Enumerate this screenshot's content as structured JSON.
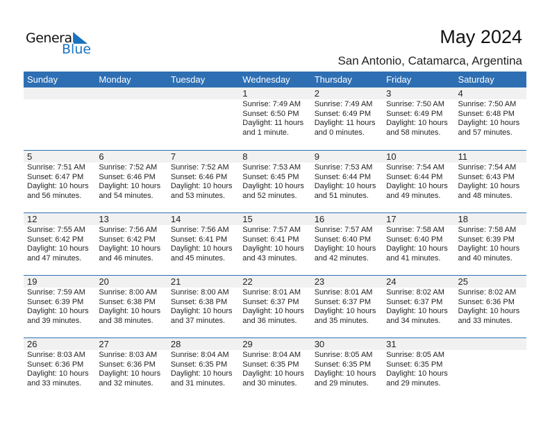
{
  "logo": {
    "line1": "General",
    "line2": "Blue"
  },
  "header": {
    "title": "May 2024",
    "location": "San Antonio, Catamarca, Argentina"
  },
  "weekdays": [
    "Sunday",
    "Monday",
    "Tuesday",
    "Wednesday",
    "Thursday",
    "Friday",
    "Saturday"
  ],
  "colors": {
    "accent": "#2e6fb3",
    "band": "#f1f1f1"
  },
  "first_weekday_offset": 3,
  "days": [
    {
      "day": "1",
      "sunrise": "Sunrise: 7:49 AM",
      "sunset": "Sunset: 6:50 PM",
      "daylight1": "Daylight: 11 hours",
      "daylight2": "and 1 minute."
    },
    {
      "day": "2",
      "sunrise": "Sunrise: 7:49 AM",
      "sunset": "Sunset: 6:49 PM",
      "daylight1": "Daylight: 11 hours",
      "daylight2": "and 0 minutes."
    },
    {
      "day": "3",
      "sunrise": "Sunrise: 7:50 AM",
      "sunset": "Sunset: 6:49 PM",
      "daylight1": "Daylight: 10 hours",
      "daylight2": "and 58 minutes."
    },
    {
      "day": "4",
      "sunrise": "Sunrise: 7:50 AM",
      "sunset": "Sunset: 6:48 PM",
      "daylight1": "Daylight: 10 hours",
      "daylight2": "and 57 minutes."
    },
    {
      "day": "5",
      "sunrise": "Sunrise: 7:51 AM",
      "sunset": "Sunset: 6:47 PM",
      "daylight1": "Daylight: 10 hours",
      "daylight2": "and 56 minutes."
    },
    {
      "day": "6",
      "sunrise": "Sunrise: 7:52 AM",
      "sunset": "Sunset: 6:46 PM",
      "daylight1": "Daylight: 10 hours",
      "daylight2": "and 54 minutes."
    },
    {
      "day": "7",
      "sunrise": "Sunrise: 7:52 AM",
      "sunset": "Sunset: 6:46 PM",
      "daylight1": "Daylight: 10 hours",
      "daylight2": "and 53 minutes."
    },
    {
      "day": "8",
      "sunrise": "Sunrise: 7:53 AM",
      "sunset": "Sunset: 6:45 PM",
      "daylight1": "Daylight: 10 hours",
      "daylight2": "and 52 minutes."
    },
    {
      "day": "9",
      "sunrise": "Sunrise: 7:53 AM",
      "sunset": "Sunset: 6:44 PM",
      "daylight1": "Daylight: 10 hours",
      "daylight2": "and 51 minutes."
    },
    {
      "day": "10",
      "sunrise": "Sunrise: 7:54 AM",
      "sunset": "Sunset: 6:44 PM",
      "daylight1": "Daylight: 10 hours",
      "daylight2": "and 49 minutes."
    },
    {
      "day": "11",
      "sunrise": "Sunrise: 7:54 AM",
      "sunset": "Sunset: 6:43 PM",
      "daylight1": "Daylight: 10 hours",
      "daylight2": "and 48 minutes."
    },
    {
      "day": "12",
      "sunrise": "Sunrise: 7:55 AM",
      "sunset": "Sunset: 6:42 PM",
      "daylight1": "Daylight: 10 hours",
      "daylight2": "and 47 minutes."
    },
    {
      "day": "13",
      "sunrise": "Sunrise: 7:56 AM",
      "sunset": "Sunset: 6:42 PM",
      "daylight1": "Daylight: 10 hours",
      "daylight2": "and 46 minutes."
    },
    {
      "day": "14",
      "sunrise": "Sunrise: 7:56 AM",
      "sunset": "Sunset: 6:41 PM",
      "daylight1": "Daylight: 10 hours",
      "daylight2": "and 45 minutes."
    },
    {
      "day": "15",
      "sunrise": "Sunrise: 7:57 AM",
      "sunset": "Sunset: 6:41 PM",
      "daylight1": "Daylight: 10 hours",
      "daylight2": "and 43 minutes."
    },
    {
      "day": "16",
      "sunrise": "Sunrise: 7:57 AM",
      "sunset": "Sunset: 6:40 PM",
      "daylight1": "Daylight: 10 hours",
      "daylight2": "and 42 minutes."
    },
    {
      "day": "17",
      "sunrise": "Sunrise: 7:58 AM",
      "sunset": "Sunset: 6:40 PM",
      "daylight1": "Daylight: 10 hours",
      "daylight2": "and 41 minutes."
    },
    {
      "day": "18",
      "sunrise": "Sunrise: 7:58 AM",
      "sunset": "Sunset: 6:39 PM",
      "daylight1": "Daylight: 10 hours",
      "daylight2": "and 40 minutes."
    },
    {
      "day": "19",
      "sunrise": "Sunrise: 7:59 AM",
      "sunset": "Sunset: 6:39 PM",
      "daylight1": "Daylight: 10 hours",
      "daylight2": "and 39 minutes."
    },
    {
      "day": "20",
      "sunrise": "Sunrise: 8:00 AM",
      "sunset": "Sunset: 6:38 PM",
      "daylight1": "Daylight: 10 hours",
      "daylight2": "and 38 minutes."
    },
    {
      "day": "21",
      "sunrise": "Sunrise: 8:00 AM",
      "sunset": "Sunset: 6:38 PM",
      "daylight1": "Daylight: 10 hours",
      "daylight2": "and 37 minutes."
    },
    {
      "day": "22",
      "sunrise": "Sunrise: 8:01 AM",
      "sunset": "Sunset: 6:37 PM",
      "daylight1": "Daylight: 10 hours",
      "daylight2": "and 36 minutes."
    },
    {
      "day": "23",
      "sunrise": "Sunrise: 8:01 AM",
      "sunset": "Sunset: 6:37 PM",
      "daylight1": "Daylight: 10 hours",
      "daylight2": "and 35 minutes."
    },
    {
      "day": "24",
      "sunrise": "Sunrise: 8:02 AM",
      "sunset": "Sunset: 6:37 PM",
      "daylight1": "Daylight: 10 hours",
      "daylight2": "and 34 minutes."
    },
    {
      "day": "25",
      "sunrise": "Sunrise: 8:02 AM",
      "sunset": "Sunset: 6:36 PM",
      "daylight1": "Daylight: 10 hours",
      "daylight2": "and 33 minutes."
    },
    {
      "day": "26",
      "sunrise": "Sunrise: 8:03 AM",
      "sunset": "Sunset: 6:36 PM",
      "daylight1": "Daylight: 10 hours",
      "daylight2": "and 33 minutes."
    },
    {
      "day": "27",
      "sunrise": "Sunrise: 8:03 AM",
      "sunset": "Sunset: 6:36 PM",
      "daylight1": "Daylight: 10 hours",
      "daylight2": "and 32 minutes."
    },
    {
      "day": "28",
      "sunrise": "Sunrise: 8:04 AM",
      "sunset": "Sunset: 6:35 PM",
      "daylight1": "Daylight: 10 hours",
      "daylight2": "and 31 minutes."
    },
    {
      "day": "29",
      "sunrise": "Sunrise: 8:04 AM",
      "sunset": "Sunset: 6:35 PM",
      "daylight1": "Daylight: 10 hours",
      "daylight2": "and 30 minutes."
    },
    {
      "day": "30",
      "sunrise": "Sunrise: 8:05 AM",
      "sunset": "Sunset: 6:35 PM",
      "daylight1": "Daylight: 10 hours",
      "daylight2": "and 29 minutes."
    },
    {
      "day": "31",
      "sunrise": "Sunrise: 8:05 AM",
      "sunset": "Sunset: 6:35 PM",
      "daylight1": "Daylight: 10 hours",
      "daylight2": "and 29 minutes."
    }
  ]
}
